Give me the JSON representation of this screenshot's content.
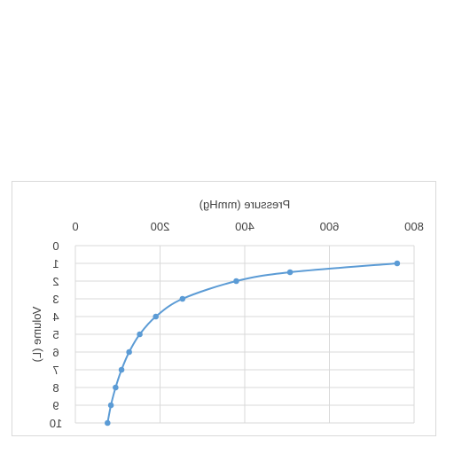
{
  "chart_data": {
    "type": "scatter",
    "title": "",
    "xlabel": "Pressure (mmHg)",
    "ylabel": "Volume (L)",
    "xlim": [
      0,
      800
    ],
    "ylim": [
      0,
      10
    ],
    "x_ticks": [
      "0",
      "200",
      "400",
      "600",
      "800"
    ],
    "y_ticks": [
      "0",
      "1",
      "2",
      "3",
      "4",
      "5",
      "6",
      "7",
      "8",
      "9",
      "10"
    ],
    "x_axis_position": "top",
    "y_axis_reversed": true,
    "mirrored_horizontally": true,
    "grid": true,
    "legend": "none",
    "line_color": "#5b9bd5",
    "grid_color": "#d9d9d9",
    "text_color": "#404040",
    "series": [
      {
        "x": [
          760,
          507,
          380,
          253,
          190,
          152,
          127,
          109,
          95,
          84,
          76
        ],
        "y": [
          1,
          1.5,
          2,
          3,
          4,
          5,
          6,
          7,
          8,
          9,
          10
        ]
      }
    ]
  }
}
